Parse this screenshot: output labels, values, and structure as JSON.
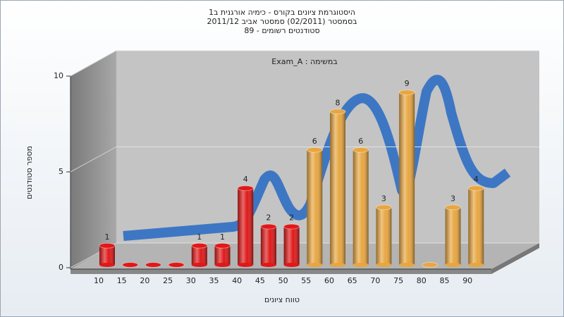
{
  "chart_data": {
    "type": "bar",
    "title_lines": [
      "היסטוגרמת ציונים בקורס - כימיה אורגנית ב1",
      "בסמסטר (02/2011) סמסטר אביב 2011/12",
      "סטודנטים רשומים - 89"
    ],
    "annotation": "במשימה : Exam_A",
    "y_label": "מספר סטודנטים",
    "x_label": "טווח ציונים",
    "categories": [
      "10",
      "15",
      "20",
      "25",
      "30",
      "35",
      "40",
      "45",
      "50",
      "55",
      "60",
      "65",
      "70",
      "75",
      "80",
      "85",
      "90"
    ],
    "values": [
      1,
      0,
      0,
      0,
      1,
      1,
      4,
      2,
      2,
      6,
      8,
      6,
      3,
      9,
      0,
      3,
      4
    ],
    "colors": [
      "#e01818",
      "#e01818",
      "#e01818",
      "#e01818",
      "#e01818",
      "#e01818",
      "#e01818",
      "#e01818",
      "#e01818",
      "#e8a640",
      "#e8a640",
      "#e8a640",
      "#e8a640",
      "#e8a640",
      "#e8a640",
      "#e8a640",
      "#e8a640"
    ],
    "ylim": [
      0,
      10
    ],
    "yticks": [
      0,
      5,
      10
    ],
    "grid": true
  }
}
